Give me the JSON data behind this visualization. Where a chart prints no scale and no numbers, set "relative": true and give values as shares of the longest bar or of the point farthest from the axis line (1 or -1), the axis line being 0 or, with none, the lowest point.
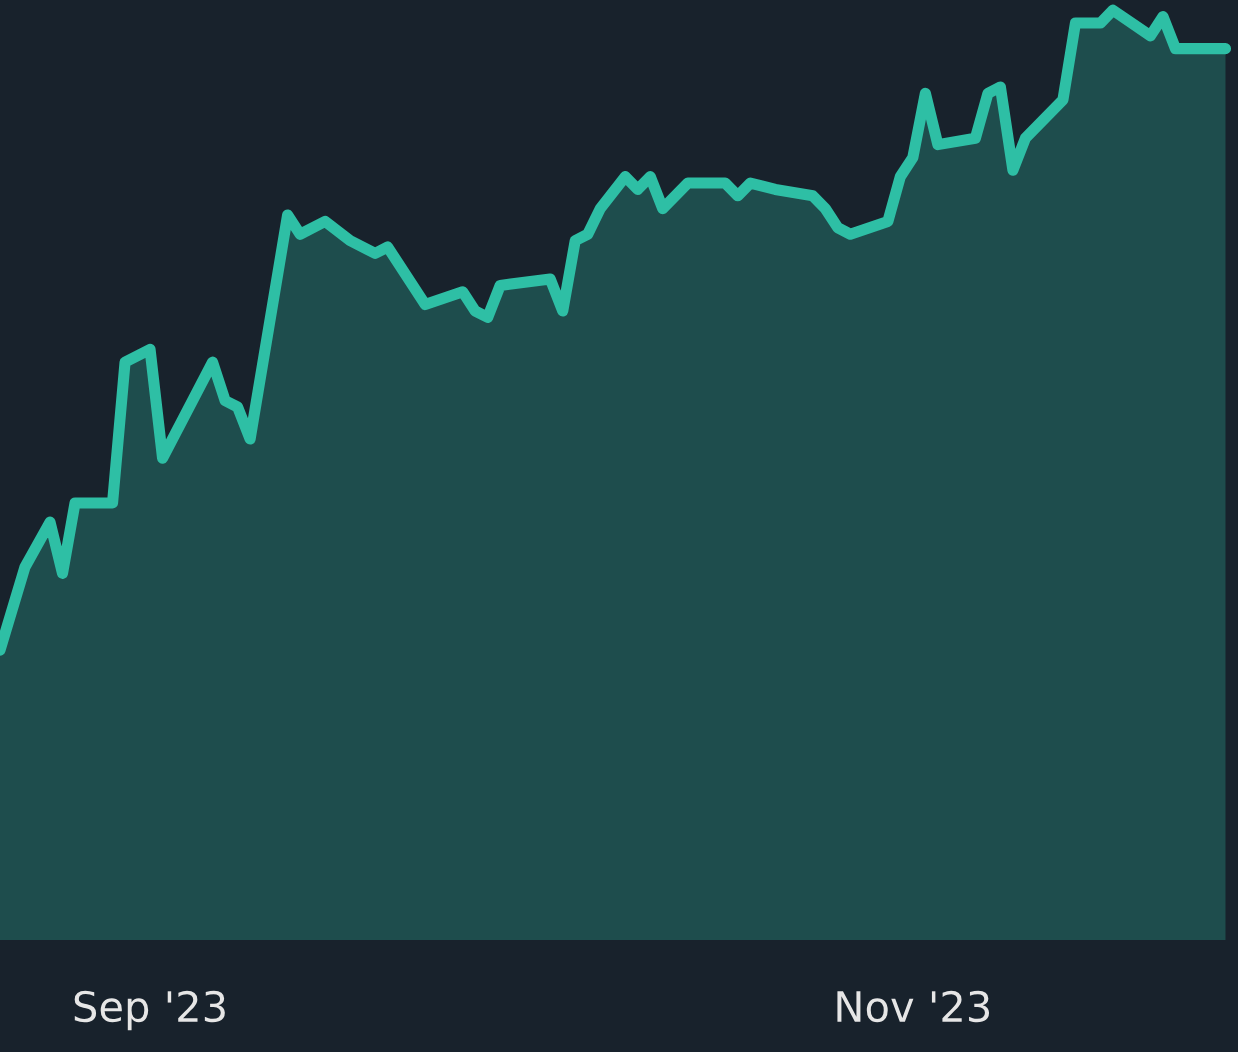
{
  "chart_data": {
    "type": "area",
    "relative": true,
    "x": [
      "2023-08-20",
      "2023-08-22",
      "2023-08-24",
      "2023-08-25",
      "2023-08-26",
      "2023-08-29",
      "2023-08-30",
      "2023-09-01",
      "2023-09-02",
      "2023-09-06",
      "2023-09-07",
      "2023-09-08",
      "2023-09-09",
      "2023-09-12",
      "2023-09-13",
      "2023-09-15",
      "2023-09-17",
      "2023-09-19",
      "2023-09-20",
      "2023-09-23",
      "2023-09-26",
      "2023-09-27",
      "2023-09-28",
      "2023-09-29",
      "2023-10-03",
      "2023-10-04",
      "2023-10-05",
      "2023-10-06",
      "2023-10-07",
      "2023-10-09",
      "2023-10-10",
      "2023-10-11",
      "2023-10-12",
      "2023-10-14",
      "2023-10-17",
      "2023-10-18",
      "2023-10-19",
      "2023-10-21",
      "2023-10-24",
      "2023-10-25",
      "2023-10-26",
      "2023-10-27",
      "2023-10-30",
      "2023-10-31",
      "2023-11-01",
      "2023-11-02",
      "2023-11-03",
      "2023-11-06",
      "2023-11-07",
      "2023-11-08",
      "2023-11-09",
      "2023-11-10",
      "2023-11-13",
      "2023-11-14",
      "2023-11-16",
      "2023-11-17",
      "2023-11-20",
      "2023-11-21",
      "2023-11-22",
      "2023-11-26"
    ],
    "series": [
      {
        "color": "#2ebfa5",
        "values": [
          0,
          0.13,
          0.2,
          0.12,
          0.23,
          0.23,
          0.45,
          0.47,
          0.3,
          0.45,
          0.39,
          0.38,
          0.33,
          0.68,
          0.65,
          0.67,
          0.64,
          0.62,
          0.63,
          0.54,
          0.56,
          0.53,
          0.52,
          0.57,
          0.58,
          0.53,
          0.64,
          0.65,
          0.69,
          0.74,
          0.72,
          0.74,
          0.69,
          0.73,
          0.73,
          0.71,
          0.73,
          0.72,
          0.71,
          0.69,
          0.66,
          0.65,
          0.67,
          0.74,
          0.77,
          0.87,
          0.79,
          0.8,
          0.87,
          0.88,
          0.75,
          0.8,
          0.86,
          0.98,
          0.98,
          1,
          0.96,
          0.99,
          0.94,
          0.94
        ]
      }
    ],
    "xlim": [
      "2023-08-20",
      "2023-11-27"
    ],
    "xticks": [
      {
        "value": "2023-09-01",
        "label": "Sep '23"
      },
      {
        "value": "2023-11-01",
        "label": "Nov '23"
      }
    ],
    "grid": false,
    "marker": "none",
    "line_style": "solid"
  }
}
